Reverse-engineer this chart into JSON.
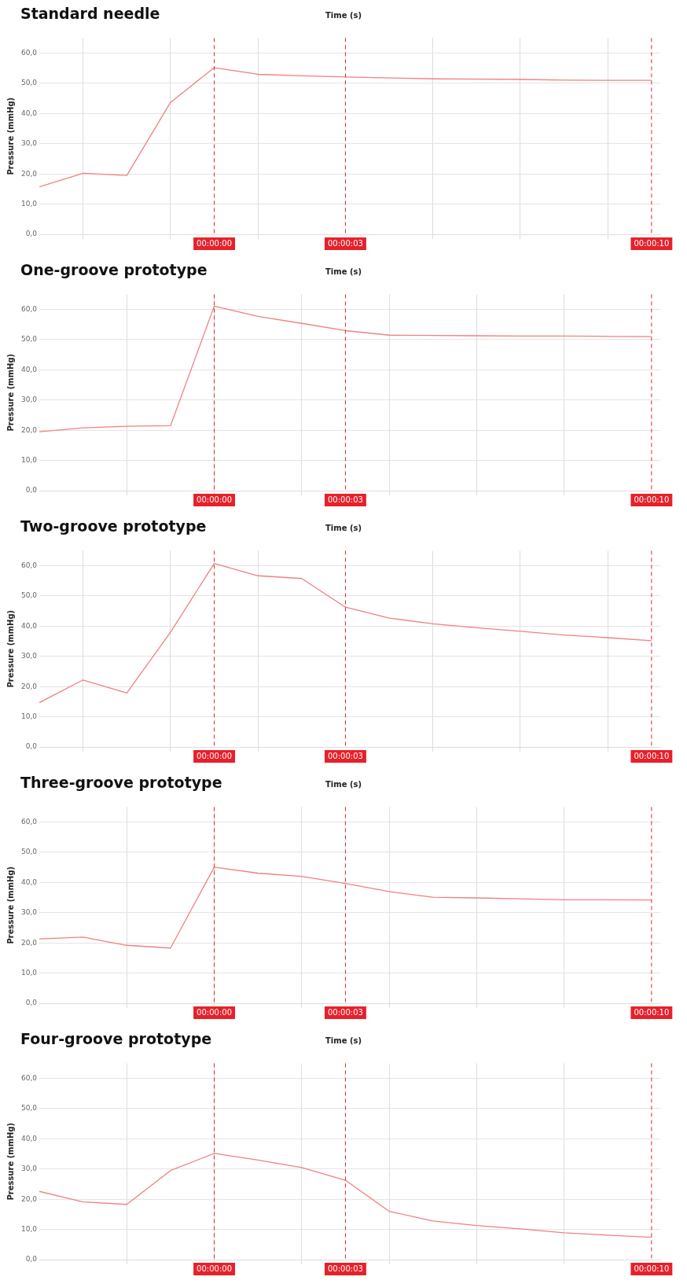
{
  "chart_data": [
    {
      "type": "line",
      "title": "Standard needle",
      "xlabel": "Time (s)",
      "ylabel": "Pressure (mmHg)",
      "x": [
        -4,
        -3,
        -2,
        -1,
        0,
        1,
        2,
        3,
        4,
        5,
        6,
        7,
        8,
        9,
        10
      ],
      "values": [
        15.7,
        20.2,
        19.5,
        43.7,
        55.2,
        53.0,
        52.5,
        52.1,
        51.8,
        51.5,
        51.4,
        51.3,
        51.1,
        51.0,
        51.0
      ],
      "color": "#f08080",
      "marker": "none",
      "xlim": [
        -4,
        10.2
      ],
      "ylim": [
        0,
        65
      ],
      "xticks": [
        {
          "value": -3,
          "label": null
        },
        {
          "value": -1,
          "label": null
        },
        {
          "value": 1,
          "label": null
        },
        {
          "value": 5,
          "label": null
        },
        {
          "value": 7,
          "label": null
        },
        {
          "value": 9,
          "label": null
        }
      ],
      "yticks": [
        {
          "value": 0,
          "label": "0,0"
        },
        {
          "value": 10,
          "label": "10,0"
        },
        {
          "value": 20,
          "label": "20,0"
        },
        {
          "value": 30,
          "label": "30,0"
        },
        {
          "value": 40,
          "label": "40,0"
        },
        {
          "value": 50,
          "label": "50,0"
        },
        {
          "value": 60,
          "label": "60,0"
        }
      ],
      "grid": true,
      "tick_labels": "y",
      "ref_lines": [
        {
          "axis": "x",
          "value": 0,
          "label": "00:00:00",
          "color": "#e8202a",
          "line_style": "dashed"
        },
        {
          "axis": "x",
          "value": 3,
          "label": "00:00:03",
          "color": "#e8202a",
          "line_style": "dashed"
        },
        {
          "axis": "x",
          "value": 10,
          "label": "00:00:10",
          "color": "#e8202a",
          "line_style": "dashed"
        }
      ]
    },
    {
      "type": "line",
      "title": "One-groove prototype",
      "xlabel": "Time (s)",
      "ylabel": "Pressure (mmHg)",
      "x": [
        -4,
        -3,
        -2,
        -1,
        0,
        1,
        2,
        3,
        4,
        5,
        6,
        7,
        8,
        9,
        10
      ],
      "values": [
        19.5,
        20.8,
        21.3,
        21.5,
        61.1,
        57.7,
        55.4,
        53.0,
        51.5,
        51.4,
        51.3,
        51.2,
        51.2,
        51.1,
        51.0
      ],
      "color": "#f08080",
      "marker": "none",
      "xlim": [
        -4,
        10.2
      ],
      "ylim": [
        0,
        65
      ],
      "xticks": [
        {
          "value": -2,
          "label": null
        },
        {
          "value": 0,
          "label": null
        },
        {
          "value": 2,
          "label": null
        },
        {
          "value": 4,
          "label": null
        },
        {
          "value": 6,
          "label": null
        },
        {
          "value": 8,
          "label": null
        }
      ],
      "yticks": [
        {
          "value": 0,
          "label": "0,0"
        },
        {
          "value": 10,
          "label": "10,0"
        },
        {
          "value": 20,
          "label": "20,0"
        },
        {
          "value": 30,
          "label": "30,0"
        },
        {
          "value": 40,
          "label": "40,0"
        },
        {
          "value": 50,
          "label": "50,0"
        },
        {
          "value": 60,
          "label": "60,0"
        }
      ],
      "grid": true,
      "tick_labels": "y",
      "ref_lines": [
        {
          "axis": "x",
          "value": 0,
          "label": "00:00:00",
          "color": "#e8202a",
          "line_style": "dashed"
        },
        {
          "axis": "x",
          "value": 3,
          "label": "00:00:03",
          "color": "#e8202a",
          "line_style": "dashed"
        },
        {
          "axis": "x",
          "value": 10,
          "label": "00:00:10",
          "color": "#e8202a",
          "line_style": "dashed"
        }
      ]
    },
    {
      "type": "line",
      "title": "Two-groove prototype",
      "xlabel": "Time (s)",
      "ylabel": "Pressure (mmHg)",
      "x": [
        -4,
        -3,
        -2,
        -1,
        0,
        1,
        2,
        3,
        4,
        5,
        6,
        7,
        8,
        9,
        10
      ],
      "values": [
        14.7,
        22.2,
        17.9,
        38.0,
        60.8,
        56.7,
        55.8,
        46.3,
        42.7,
        40.8,
        39.5,
        38.3,
        37.1,
        36.2,
        35.2
      ],
      "color": "#f08080",
      "marker": "none",
      "xlim": [
        -4,
        10.2
      ],
      "ylim": [
        0,
        65
      ],
      "xticks": [
        {
          "value": -3,
          "label": null
        },
        {
          "value": -1,
          "label": null
        },
        {
          "value": 1,
          "label": null
        },
        {
          "value": 5,
          "label": null
        },
        {
          "value": 7,
          "label": null
        },
        {
          "value": 9,
          "label": null
        }
      ],
      "yticks": [
        {
          "value": 0,
          "label": "0,0"
        },
        {
          "value": 10,
          "label": "10,0"
        },
        {
          "value": 20,
          "label": "20,0"
        },
        {
          "value": 30,
          "label": "30,0"
        },
        {
          "value": 40,
          "label": "40,0"
        },
        {
          "value": 50,
          "label": "50,0"
        },
        {
          "value": 60,
          "label": "60,0"
        }
      ],
      "grid": true,
      "tick_labels": "y",
      "ref_lines": [
        {
          "axis": "x",
          "value": 0,
          "label": "00:00:00",
          "color": "#e8202a",
          "line_style": "dashed"
        },
        {
          "axis": "x",
          "value": 3,
          "label": "00:00:03",
          "color": "#e8202a",
          "line_style": "dashed"
        },
        {
          "axis": "x",
          "value": 10,
          "label": "00:00:10",
          "color": "#e8202a",
          "line_style": "dashed"
        }
      ]
    },
    {
      "type": "line",
      "title": "Three-groove prototype",
      "xlabel": "Time (s)",
      "ylabel": "Pressure (mmHg)",
      "x": [
        -4,
        -3,
        -2,
        -1,
        0,
        1,
        2,
        3,
        4,
        5,
        6,
        7,
        8,
        9,
        10
      ],
      "values": [
        21.3,
        21.9,
        19.2,
        18.3,
        45.1,
        43.1,
        42.0,
        39.7,
        37.0,
        35.1,
        34.9,
        34.6,
        34.3,
        34.3,
        34.2
      ],
      "color": "#f08080",
      "marker": "none",
      "xlim": [
        -4,
        10.2
      ],
      "ylim": [
        0,
        65
      ],
      "xticks": [
        {
          "value": -2,
          "label": null
        },
        {
          "value": 0,
          "label": null
        },
        {
          "value": 2,
          "label": null
        },
        {
          "value": 4,
          "label": null
        },
        {
          "value": 6,
          "label": null
        },
        {
          "value": 8,
          "label": null
        }
      ],
      "yticks": [
        {
          "value": 0,
          "label": "0,0"
        },
        {
          "value": 10,
          "label": "10,0"
        },
        {
          "value": 20,
          "label": "20,0"
        },
        {
          "value": 30,
          "label": "30,0"
        },
        {
          "value": 40,
          "label": "40,0"
        },
        {
          "value": 50,
          "label": "50,0"
        },
        {
          "value": 60,
          "label": "60,0"
        }
      ],
      "grid": true,
      "tick_labels": "y",
      "ref_lines": [
        {
          "axis": "x",
          "value": 0,
          "label": "00:00:00",
          "color": "#e8202a",
          "line_style": "dashed"
        },
        {
          "axis": "x",
          "value": 3,
          "label": "00:00:03",
          "color": "#e8202a",
          "line_style": "dashed"
        },
        {
          "axis": "x",
          "value": 10,
          "label": "00:00:10",
          "color": "#e8202a",
          "line_style": "dashed"
        }
      ]
    },
    {
      "type": "line",
      "title": "Four-groove prototype",
      "xlabel": "Time (s)",
      "ylabel": "Pressure (mmHg)",
      "x": [
        -4,
        -3,
        -2,
        -1,
        0,
        1,
        2,
        3,
        4,
        5,
        6,
        7,
        8,
        9,
        10
      ],
      "values": [
        22.6,
        19.1,
        18.3,
        29.5,
        35.2,
        33.0,
        30.5,
        26.3,
        16.0,
        12.8,
        11.3,
        10.2,
        8.9,
        8.1,
        7.4
      ],
      "color": "#f08080",
      "marker": "none",
      "xlim": [
        -4,
        10.2
      ],
      "ylim": [
        0,
        65
      ],
      "xticks": [
        {
          "value": -2,
          "label": null
        },
        {
          "value": 0,
          "label": null
        },
        {
          "value": 2,
          "label": null
        },
        {
          "value": 4,
          "label": null
        },
        {
          "value": 6,
          "label": null
        },
        {
          "value": 8,
          "label": null
        }
      ],
      "yticks": [
        {
          "value": 0,
          "label": "0,0"
        },
        {
          "value": 10,
          "label": "10,0"
        },
        {
          "value": 20,
          "label": "20,0"
        },
        {
          "value": 30,
          "label": "30,0"
        },
        {
          "value": 40,
          "label": "40,0"
        },
        {
          "value": 50,
          "label": "50,0"
        },
        {
          "value": 60,
          "label": "60,0"
        }
      ],
      "grid": true,
      "tick_labels": "y",
      "ref_lines": [
        {
          "axis": "x",
          "value": 0,
          "label": "00:00:00",
          "color": "#e8202a",
          "line_style": "dashed"
        },
        {
          "axis": "x",
          "value": 3,
          "label": "00:00:03",
          "color": "#e8202a",
          "line_style": "dashed"
        },
        {
          "axis": "x",
          "value": 10,
          "label": "00:00:10",
          "color": "#e8202a",
          "line_style": "dashed"
        }
      ]
    }
  ]
}
